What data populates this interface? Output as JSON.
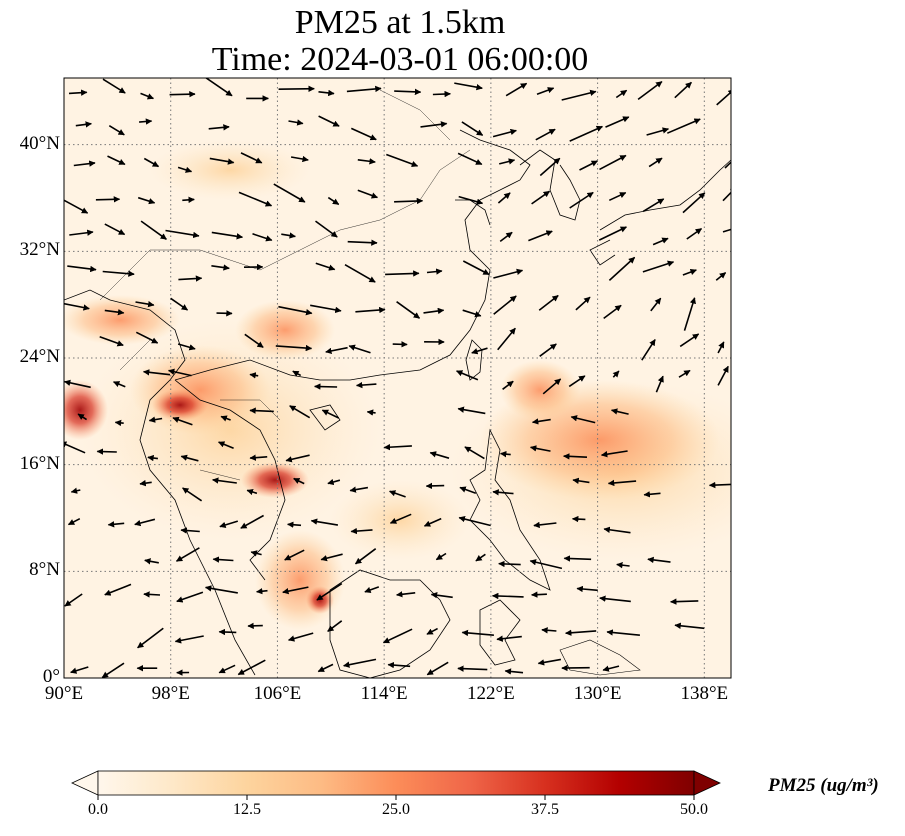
{
  "title_line1": "PM25 at 1.5km",
  "title_line2": "Time: 2024-03-01 06:00:00",
  "map": {
    "projection": "PlateCarree",
    "lon_range": [
      90,
      140
    ],
    "lat_range": [
      0,
      45
    ],
    "lon_ticks": [
      "90°E",
      "98°E",
      "106°E",
      "114°E",
      "122°E",
      "130°E",
      "138°E"
    ],
    "lat_ticks": [
      "0°",
      "8°N",
      "16°N",
      "24°N",
      "32°N",
      "40°N"
    ],
    "gridlines": "dotted",
    "field_variable": "PM25",
    "vectors": "wind"
  },
  "colorbar": {
    "colormap": "OrRd",
    "ticks": [
      "0.0",
      "12.5",
      "25.0",
      "37.5",
      "50.0"
    ],
    "range": [
      0,
      50
    ],
    "extend": "both",
    "label": "PM25 (ug/m³)",
    "colors": [
      "#fff7ec",
      "#fee8c8",
      "#fdd49e",
      "#fdbb84",
      "#fc8d59",
      "#ef6548",
      "#d7301f",
      "#b30000",
      "#7f0000"
    ]
  }
}
